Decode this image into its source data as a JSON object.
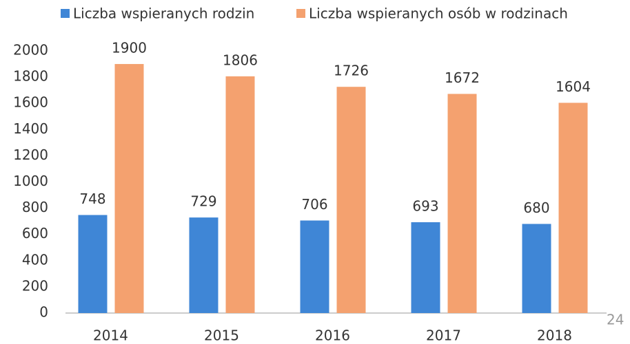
{
  "chart_data": {
    "type": "bar",
    "categories": [
      "2014",
      "2015",
      "2016",
      "2017",
      "2018"
    ],
    "series": [
      {
        "name": "Liczba wspieranych rodzin",
        "color": "#3f86d6",
        "values": [
          748,
          729,
          706,
          693,
          680
        ]
      },
      {
        "name": "Liczba wspieranych osób w rodzinach",
        "color": "#f4a16f",
        "values": [
          1900,
          1806,
          1726,
          1672,
          1604
        ]
      }
    ],
    "ylim": [
      0,
      2000
    ],
    "yticks": [
      0,
      200,
      400,
      600,
      800,
      1000,
      1200,
      1400,
      1600,
      1800,
      2000
    ],
    "legend": "top",
    "grid": false
  },
  "page_number": "24"
}
